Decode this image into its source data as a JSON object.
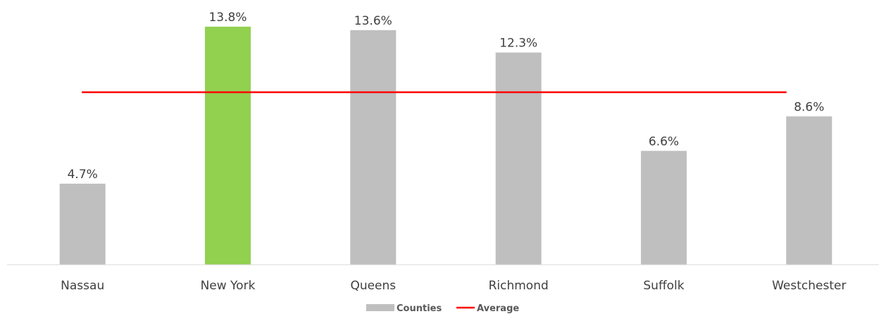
{
  "chart_data": {
    "type": "bar",
    "categories": [
      "Nassau",
      "New York",
      "Queens",
      "Richmond",
      "Suffolk",
      "Westchester"
    ],
    "series": [
      {
        "name": "Counties",
        "values": [
          4.7,
          13.8,
          13.6,
          12.3,
          6.6,
          8.6
        ],
        "value_labels": [
          "4.7%",
          "13.8%",
          "13.6%",
          "12.3%",
          "6.6%",
          "8.6%"
        ],
        "color": "#bfbfbf",
        "highlight": {
          "category": "New York",
          "color": "#92d050"
        }
      },
      {
        "name": "Average",
        "type": "line",
        "value": 10.0,
        "color": "#ff0000"
      }
    ],
    "title": "",
    "xlabel": "",
    "ylabel": "",
    "ylim": [
      0,
      15
    ],
    "grid": false,
    "legend": "bottom",
    "legend_entries": [
      {
        "label": "Counties",
        "kind": "bar",
        "color": "#bfbfbf"
      },
      {
        "label": "Average",
        "kind": "line",
        "color": "#ff0000"
      }
    ]
  }
}
